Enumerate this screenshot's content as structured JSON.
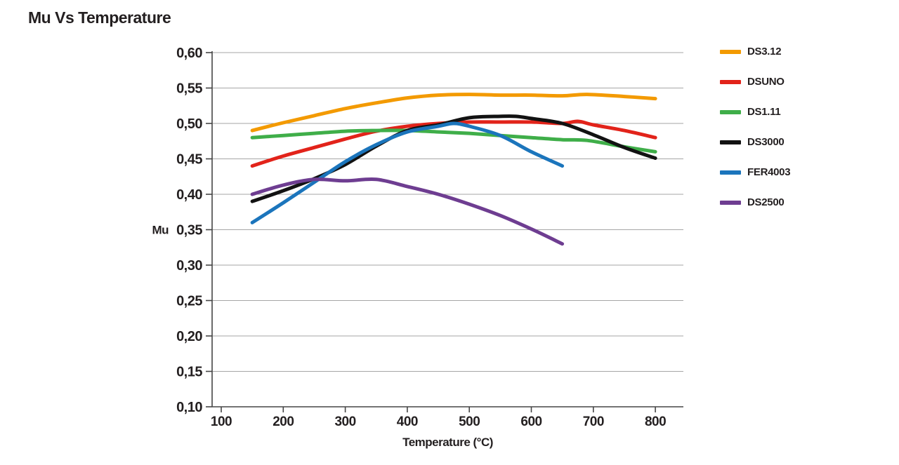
{
  "title": "Mu Vs Temperature",
  "colors": {
    "text": "#231f20",
    "grid": "#a6a6a6",
    "axis": "#454545",
    "background": "#ffffff"
  },
  "chart_data": {
    "type": "line",
    "title": "Mu Vs Temperature",
    "xlabel": "Temperature (°C)",
    "ylabel": "Mu",
    "xlim": [
      100,
      845
    ],
    "ylim": [
      0.1,
      0.6
    ],
    "grid": "horizontal-only",
    "legend_position": "right",
    "decimal_separator": ",",
    "x_ticks": [
      {
        "value": 100,
        "label": "100"
      },
      {
        "value": 200,
        "label": "200"
      },
      {
        "value": 300,
        "label": "300"
      },
      {
        "value": 400,
        "label": "400"
      },
      {
        "value": 500,
        "label": "500"
      },
      {
        "value": 600,
        "label": "600"
      },
      {
        "value": 700,
        "label": "700"
      },
      {
        "value": 800,
        "label": "800"
      }
    ],
    "y_ticks": [
      {
        "value": 0.6,
        "label": "0,60"
      },
      {
        "value": 0.55,
        "label": "0,55"
      },
      {
        "value": 0.5,
        "label": "0,50"
      },
      {
        "value": 0.45,
        "label": "0,45"
      },
      {
        "value": 0.4,
        "label": "0,40"
      },
      {
        "value": 0.35,
        "label": "0,35"
      },
      {
        "value": 0.3,
        "label": "0,30"
      },
      {
        "value": 0.25,
        "label": "0,25"
      },
      {
        "value": 0.2,
        "label": "0,20"
      },
      {
        "value": 0.15,
        "label": "0,15"
      },
      {
        "value": 0.1,
        "label": "0,10"
      }
    ],
    "series": [
      {
        "name": "DS3.12",
        "color": "#F39A00",
        "points": [
          [
            150,
            0.49
          ],
          [
            200,
            0.501
          ],
          [
            250,
            0.511
          ],
          [
            300,
            0.521
          ],
          [
            350,
            0.529
          ],
          [
            400,
            0.536
          ],
          [
            450,
            0.54
          ],
          [
            500,
            0.541
          ],
          [
            550,
            0.54
          ],
          [
            600,
            0.54
          ],
          [
            650,
            0.539
          ],
          [
            690,
            0.541
          ],
          [
            750,
            0.538
          ],
          [
            800,
            0.535
          ]
        ]
      },
      {
        "name": "DSUNO",
        "color": "#E2231A",
        "points": [
          [
            150,
            0.44
          ],
          [
            200,
            0.454
          ],
          [
            250,
            0.466
          ],
          [
            300,
            0.478
          ],
          [
            350,
            0.489
          ],
          [
            400,
            0.496
          ],
          [
            450,
            0.5
          ],
          [
            500,
            0.502
          ],
          [
            550,
            0.502
          ],
          [
            600,
            0.502
          ],
          [
            650,
            0.5
          ],
          [
            675,
            0.503
          ],
          [
            700,
            0.498
          ],
          [
            750,
            0.49
          ],
          [
            800,
            0.48
          ]
        ]
      },
      {
        "name": "DS1.11",
        "color": "#3FAE49",
        "points": [
          [
            150,
            0.48
          ],
          [
            200,
            0.483
          ],
          [
            250,
            0.486
          ],
          [
            300,
            0.489
          ],
          [
            350,
            0.49
          ],
          [
            400,
            0.49
          ],
          [
            450,
            0.488
          ],
          [
            500,
            0.486
          ],
          [
            550,
            0.483
          ],
          [
            600,
            0.48
          ],
          [
            650,
            0.477
          ],
          [
            690,
            0.476
          ],
          [
            750,
            0.467
          ],
          [
            800,
            0.46
          ]
        ]
      },
      {
        "name": "DS3000",
        "color": "#121212",
        "points": [
          [
            150,
            0.39
          ],
          [
            200,
            0.405
          ],
          [
            250,
            0.422
          ],
          [
            300,
            0.442
          ],
          [
            350,
            0.468
          ],
          [
            400,
            0.49
          ],
          [
            450,
            0.498
          ],
          [
            500,
            0.508
          ],
          [
            550,
            0.51
          ],
          [
            575,
            0.51
          ],
          [
            600,
            0.507
          ],
          [
            650,
            0.5
          ],
          [
            700,
            0.484
          ],
          [
            750,
            0.466
          ],
          [
            800,
            0.451
          ]
        ]
      },
      {
        "name": "FER4003",
        "color": "#1B75BC",
        "points": [
          [
            150,
            0.36
          ],
          [
            200,
            0.388
          ],
          [
            250,
            0.417
          ],
          [
            300,
            0.446
          ],
          [
            350,
            0.47
          ],
          [
            400,
            0.488
          ],
          [
            450,
            0.496
          ],
          [
            475,
            0.5
          ],
          [
            500,
            0.496
          ],
          [
            550,
            0.483
          ],
          [
            600,
            0.46
          ],
          [
            650,
            0.44
          ]
        ]
      },
      {
        "name": "DS2500",
        "color": "#6E3D91",
        "points": [
          [
            150,
            0.4
          ],
          [
            200,
            0.413
          ],
          [
            250,
            0.421
          ],
          [
            300,
            0.419
          ],
          [
            350,
            0.421
          ],
          [
            400,
            0.411
          ],
          [
            450,
            0.4
          ],
          [
            500,
            0.386
          ],
          [
            550,
            0.37
          ],
          [
            600,
            0.351
          ],
          [
            650,
            0.33
          ]
        ]
      }
    ]
  }
}
